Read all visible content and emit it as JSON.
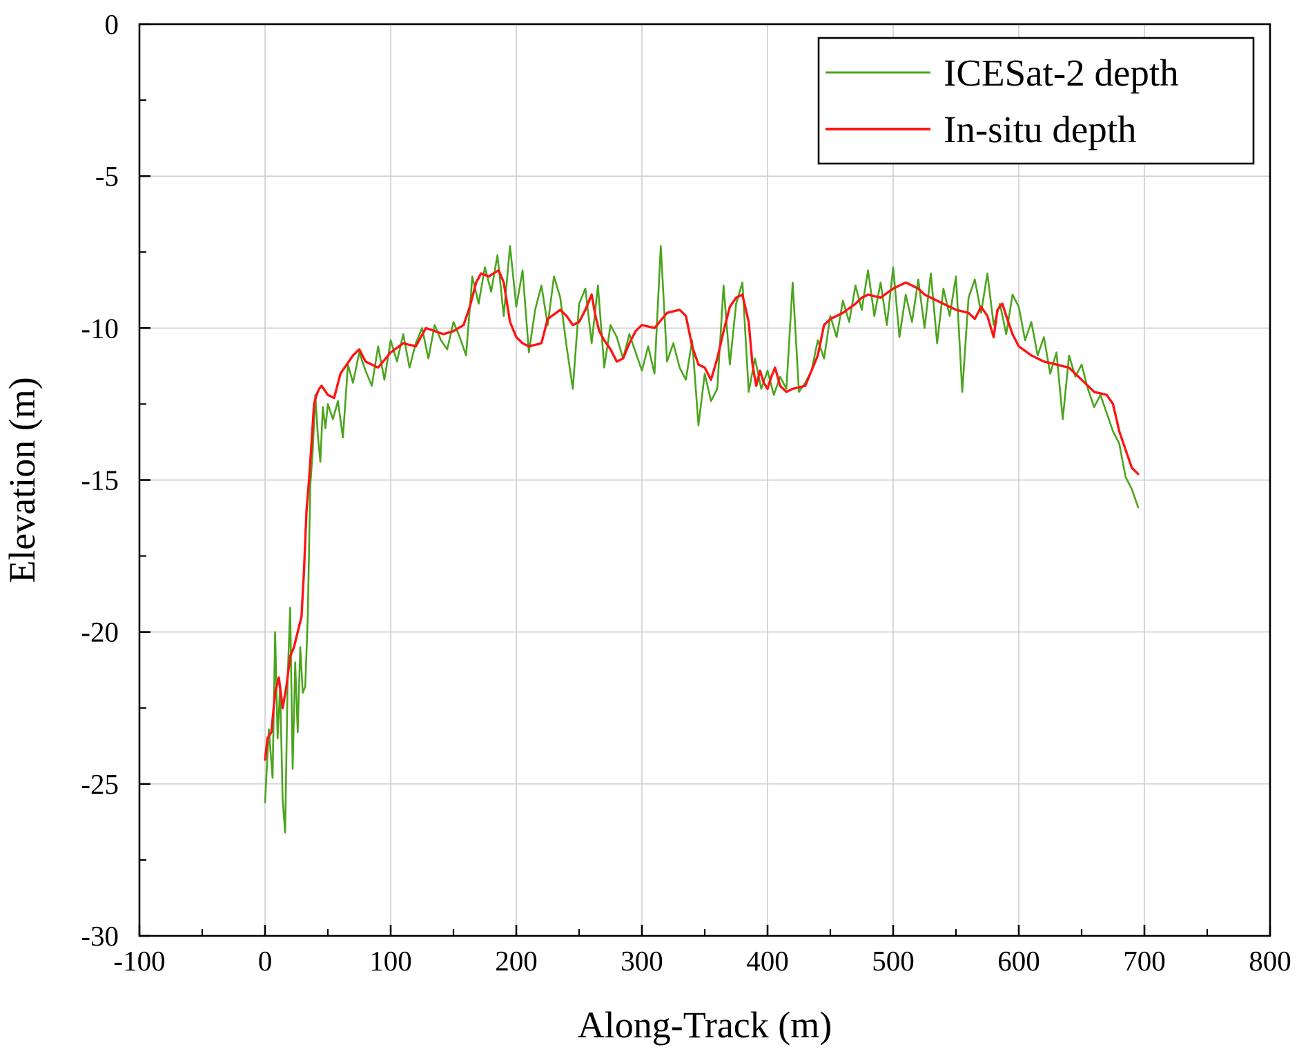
{
  "chart_data": {
    "type": "line",
    "title": "",
    "xlabel": "Along-Track (m)",
    "ylabel": "Elevation (m)",
    "xlim": [
      -100,
      800
    ],
    "ylim": [
      -30,
      0
    ],
    "x_ticks": [
      -100,
      0,
      100,
      200,
      300,
      400,
      500,
      600,
      700,
      800
    ],
    "y_ticks": [
      0,
      -5,
      -10,
      -15,
      -20,
      -25,
      -30
    ],
    "grid": true,
    "legend_position": "top-right",
    "series": [
      {
        "name": "ICESat-2 depth",
        "color": "#4aa51c",
        "x": [
          0,
          3,
          6,
          8,
          10,
          12,
          14,
          16,
          18,
          20,
          22,
          24,
          26,
          28,
          30,
          32,
          34,
          36,
          38,
          40,
          42,
          44,
          46,
          48,
          50,
          54,
          58,
          62,
          66,
          70,
          75,
          80,
          85,
          90,
          95,
          100,
          105,
          110,
          115,
          120,
          125,
          130,
          135,
          140,
          145,
          150,
          155,
          160,
          165,
          170,
          175,
          180,
          185,
          190,
          195,
          200,
          205,
          210,
          215,
          220,
          225,
          230,
          235,
          240,
          245,
          250,
          255,
          260,
          265,
          270,
          275,
          280,
          285,
          290,
          295,
          300,
          305,
          310,
          315,
          320,
          325,
          330,
          335,
          340,
          345,
          350,
          355,
          360,
          365,
          370,
          375,
          380,
          385,
          390,
          395,
          400,
          405,
          410,
          415,
          420,
          425,
          430,
          435,
          440,
          445,
          450,
          455,
          460,
          465,
          470,
          475,
          480,
          485,
          490,
          495,
          500,
          505,
          510,
          515,
          520,
          525,
          530,
          535,
          540,
          545,
          550,
          555,
          560,
          565,
          570,
          575,
          580,
          585,
          590,
          595,
          600,
          605,
          610,
          615,
          620,
          625,
          630,
          635,
          640,
          645,
          650,
          655,
          660,
          665,
          670,
          675,
          680,
          685,
          690,
          695
        ],
        "y": [
          -25.6,
          -23.2,
          -24.8,
          -20.0,
          -23.5,
          -21.8,
          -25.5,
          -26.6,
          -21.5,
          -19.2,
          -24.5,
          -21.0,
          -23.3,
          -20.5,
          -22.0,
          -21.8,
          -19.5,
          -15.2,
          -14.0,
          -12.2,
          -13.5,
          -14.4,
          -12.6,
          -13.3,
          -12.5,
          -13.0,
          -12.4,
          -13.6,
          -11.2,
          -11.8,
          -10.8,
          -11.4,
          -11.9,
          -10.6,
          -11.7,
          -10.4,
          -11.1,
          -10.2,
          -11.3,
          -10.5,
          -10.0,
          -11.0,
          -9.9,
          -10.4,
          -10.7,
          -9.8,
          -10.3,
          -10.9,
          -8.3,
          -9.2,
          -8.0,
          -8.8,
          -7.6,
          -9.6,
          -7.3,
          -9.3,
          -8.1,
          -10.8,
          -9.4,
          -8.6,
          -9.9,
          -8.3,
          -9.0,
          -10.6,
          -12.0,
          -9.2,
          -8.7,
          -10.5,
          -8.6,
          -11.3,
          -9.9,
          -10.3,
          -11.0,
          -10.2,
          -10.8,
          -11.4,
          -10.6,
          -11.5,
          -7.3,
          -11.1,
          -10.5,
          -11.3,
          -11.7,
          -10.4,
          -13.2,
          -11.5,
          -12.4,
          -12.0,
          -8.6,
          -11.2,
          -9.2,
          -8.5,
          -12.1,
          -11.0,
          -12.0,
          -11.4,
          -12.2,
          -11.6,
          -12.0,
          -8.5,
          -12.1,
          -11.8,
          -11.4,
          -10.4,
          -11.0,
          -9.6,
          -10.3,
          -9.1,
          -9.8,
          -8.6,
          -9.4,
          -8.1,
          -9.6,
          -8.5,
          -9.9,
          -8.0,
          -10.3,
          -8.9,
          -9.8,
          -8.4,
          -10.0,
          -8.2,
          -10.5,
          -8.7,
          -9.6,
          -8.3,
          -12.1,
          -9.0,
          -8.4,
          -9.5,
          -8.2,
          -9.9,
          -9.2,
          -10.2,
          -8.9,
          -9.3,
          -10.4,
          -9.8,
          -10.9,
          -10.3,
          -11.5,
          -10.8,
          -13.0,
          -10.9,
          -11.6,
          -11.2,
          -12.0,
          -12.6,
          -12.2,
          -12.8,
          -13.4,
          -13.8,
          -14.9,
          -15.3,
          -15.9
        ],
        "stroke_width": 2.6
      },
      {
        "name": "In-situ depth",
        "color": "#ff1414",
        "x": [
          0,
          2,
          5,
          8,
          11,
          14,
          17,
          20,
          23,
          26,
          29,
          31,
          33,
          35,
          37,
          39,
          41,
          43,
          45,
          50,
          55,
          60,
          65,
          70,
          75,
          80,
          90,
          100,
          110,
          120,
          128,
          135,
          142,
          150,
          158,
          163,
          168,
          172,
          178,
          182,
          186,
          190,
          195,
          200,
          205,
          210,
          220,
          225,
          235,
          240,
          245,
          250,
          255,
          260,
          263,
          266,
          270,
          275,
          280,
          285,
          290,
          295,
          300,
          310,
          320,
          330,
          335,
          340,
          345,
          350,
          355,
          360,
          365,
          370,
          375,
          380,
          385,
          388,
          391,
          394,
          397,
          400,
          403,
          406,
          410,
          415,
          420,
          430,
          440,
          445,
          450,
          460,
          470,
          475,
          480,
          490,
          500,
          510,
          515,
          520,
          525,
          530,
          540,
          550,
          560,
          565,
          570,
          575,
          580,
          583,
          587,
          590,
          595,
          600,
          610,
          620,
          630,
          640,
          650,
          660,
          670,
          675,
          680,
          685,
          690,
          695
        ],
        "y": [
          -24.2,
          -23.5,
          -23.3,
          -22.0,
          -21.5,
          -22.5,
          -21.8,
          -20.8,
          -20.5,
          -20.0,
          -19.5,
          -18.0,
          -16.0,
          -15.0,
          -13.8,
          -12.5,
          -12.2,
          -12.0,
          -11.9,
          -12.2,
          -12.3,
          -11.5,
          -11.2,
          -10.9,
          -10.7,
          -11.1,
          -11.3,
          -10.8,
          -10.5,
          -10.6,
          -10.0,
          -10.1,
          -10.2,
          -10.1,
          -9.9,
          -9.3,
          -8.5,
          -8.2,
          -8.3,
          -8.2,
          -8.1,
          -8.5,
          -9.8,
          -10.3,
          -10.5,
          -10.6,
          -10.5,
          -9.7,
          -9.4,
          -9.6,
          -9.9,
          -9.8,
          -9.4,
          -8.9,
          -9.6,
          -10.1,
          -10.4,
          -10.7,
          -11.1,
          -11.0,
          -10.5,
          -10.1,
          -9.9,
          -10.0,
          -9.5,
          -9.4,
          -9.6,
          -10.6,
          -11.2,
          -11.3,
          -11.7,
          -11.0,
          -10.1,
          -9.3,
          -9.0,
          -8.9,
          -9.8,
          -11.2,
          -11.9,
          -11.4,
          -11.8,
          -12.0,
          -11.6,
          -11.3,
          -11.9,
          -12.1,
          -12.0,
          -11.9,
          -10.9,
          -9.9,
          -9.7,
          -9.5,
          -9.2,
          -9.0,
          -8.9,
          -9.0,
          -8.7,
          -8.5,
          -8.6,
          -8.7,
          -8.9,
          -9.0,
          -9.2,
          -9.4,
          -9.5,
          -9.7,
          -9.3,
          -9.6,
          -10.3,
          -9.4,
          -9.2,
          -9.6,
          -10.2,
          -10.6,
          -10.9,
          -11.1,
          -11.2,
          -11.3,
          -11.7,
          -12.1,
          -12.2,
          -12.5,
          -13.4,
          -14.0,
          -14.6,
          -14.8
        ],
        "stroke_width": 3.4
      }
    ]
  }
}
